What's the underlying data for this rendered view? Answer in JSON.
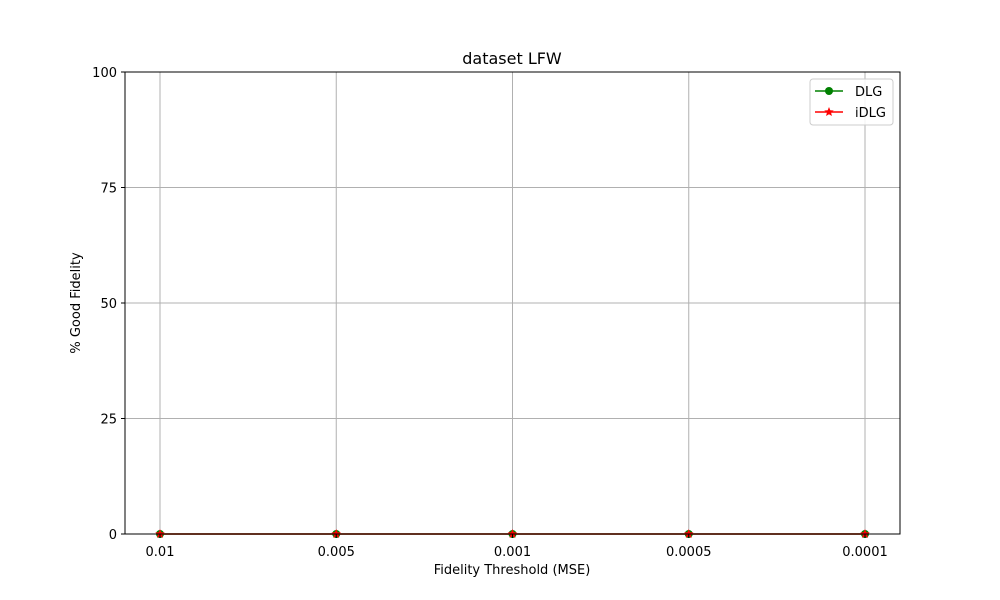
{
  "chart_data": {
    "type": "line",
    "title": "dataset LFW",
    "xlabel": "Fidelity Threshold (MSE)",
    "ylabel": "% Good Fidelity",
    "categories": [
      "0.01",
      "0.005",
      "0.001",
      "0.0005",
      "0.0001"
    ],
    "yticks": [
      "0",
      "25",
      "50",
      "75",
      "100"
    ],
    "ylim": [
      0,
      100
    ],
    "grid": true,
    "legend_position": "top-right",
    "series": [
      {
        "name": "DLG",
        "values": [
          0,
          0,
          0,
          0,
          0
        ],
        "color": "#008000",
        "marker": "circle"
      },
      {
        "name": "iDLG",
        "values": [
          0,
          0,
          0,
          0,
          0
        ],
        "color": "#ff0000",
        "marker": "star"
      }
    ]
  }
}
